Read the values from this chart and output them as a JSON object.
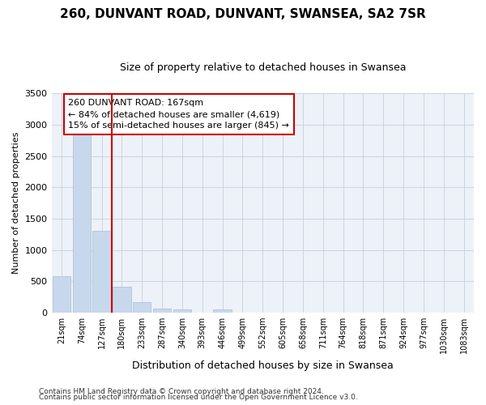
{
  "title1": "260, DUNVANT ROAD, DUNVANT, SWANSEA, SA2 7SR",
  "title2": "Size of property relative to detached houses in Swansea",
  "xlabel": "Distribution of detached houses by size in Swansea",
  "ylabel": "Number of detached properties",
  "footnote1": "Contains HM Land Registry data © Crown copyright and database right 2024.",
  "footnote2": "Contains public sector information licensed under the Open Government Licence v3.0.",
  "annotation_line1": "260 DUNVANT ROAD: 167sqm",
  "annotation_line2": "← 84% of detached houses are smaller (4,619)",
  "annotation_line3": "15% of semi-detached houses are larger (845) →",
  "bar_color": "#c8d8ec",
  "bar_edge_color": "#aabdd4",
  "marker_color": "#cc0000",
  "categories": [
    "21sqm",
    "74sqm",
    "127sqm",
    "180sqm",
    "233sqm",
    "287sqm",
    "340sqm",
    "393sqm",
    "446sqm",
    "499sqm",
    "552sqm",
    "605sqm",
    "658sqm",
    "711sqm",
    "764sqm",
    "818sqm",
    "871sqm",
    "924sqm",
    "977sqm",
    "1030sqm",
    "1083sqm"
  ],
  "values": [
    580,
    2900,
    1310,
    420,
    175,
    70,
    55,
    0,
    55,
    0,
    0,
    0,
    0,
    0,
    0,
    0,
    0,
    0,
    0,
    0,
    0
  ],
  "ylim": [
    0,
    3500
  ],
  "yticks": [
    0,
    500,
    1000,
    1500,
    2000,
    2500,
    3000,
    3500
  ],
  "red_line_x": 3.0,
  "bg_color": "#edf2f8",
  "grid_color": "#c5d0dc",
  "title1_fontsize": 11,
  "title2_fontsize": 9,
  "ylabel_fontsize": 8,
  "xlabel_fontsize": 9,
  "annot_fontsize": 8,
  "tick_fontsize": 7,
  "footnote_fontsize": 6.5
}
